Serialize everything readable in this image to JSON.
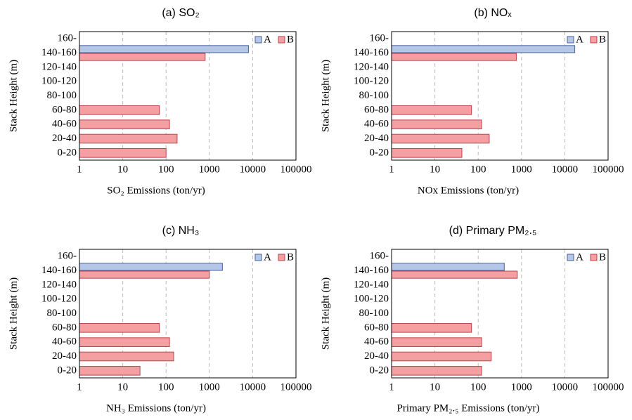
{
  "chart_data": [
    {
      "type": "bar",
      "orientation": "horizontal",
      "title": "(a) SO₂",
      "xlabel": "SO₂ Emissions (ton/yr)",
      "ylabel": "Stack Height (m)",
      "categories": [
        "0-20",
        "20-40",
        "40-60",
        "60-80",
        "80-100",
        "100-120",
        "120-140",
        "140-160",
        "160-"
      ],
      "series": [
        {
          "name": "A",
          "color": "#b4c7e7",
          "values": [
            null,
            null,
            null,
            null,
            null,
            null,
            null,
            8000,
            null
          ]
        },
        {
          "name": "B",
          "color": "#f4a0a3",
          "values": [
            100,
            180,
            120,
            70,
            null,
            null,
            null,
            800,
            null
          ]
        }
      ],
      "xscale": "log",
      "xlim": [
        1,
        100000
      ],
      "xticks": [
        1,
        10,
        100,
        1000,
        10000,
        100000
      ],
      "grid": true,
      "legend": "upper right"
    },
    {
      "type": "bar",
      "orientation": "horizontal",
      "title": "(b) NOₓ",
      "xlabel": "NOx Emissions (ton/yr)",
      "ylabel": "Stack Height (m)",
      "categories": [
        "0-20",
        "20-40",
        "40-60",
        "60-80",
        "80-100",
        "100-120",
        "120-140",
        "140-160",
        "160-"
      ],
      "series": [
        {
          "name": "A",
          "color": "#b4c7e7",
          "values": [
            null,
            null,
            null,
            null,
            null,
            null,
            null,
            17000,
            null
          ]
        },
        {
          "name": "B",
          "color": "#f4a0a3",
          "values": [
            42,
            180,
            120,
            70,
            null,
            null,
            null,
            760,
            null
          ]
        }
      ],
      "xscale": "log",
      "xlim": [
        1,
        100000
      ],
      "xticks": [
        1,
        10,
        100,
        1000,
        10000,
        100000
      ],
      "grid": true,
      "legend": "upper right"
    },
    {
      "type": "bar",
      "orientation": "horizontal",
      "title": "(c) NH₃",
      "xlabel": "NH₃ Emissions (ton/yr)",
      "ylabel": "Stack Height (m)",
      "categories": [
        "0-20",
        "20-40",
        "40-60",
        "60-80",
        "80-100",
        "100-120",
        "120-140",
        "140-160",
        "160-"
      ],
      "series": [
        {
          "name": "A",
          "color": "#b4c7e7",
          "values": [
            null,
            null,
            null,
            null,
            null,
            null,
            null,
            2000,
            null
          ]
        },
        {
          "name": "B",
          "color": "#f4a0a3",
          "values": [
            25,
            150,
            120,
            70,
            null,
            null,
            null,
            1000,
            null
          ]
        }
      ],
      "xscale": "log",
      "xlim": [
        1,
        100000
      ],
      "xticks": [
        1,
        10,
        100,
        1000,
        10000,
        100000
      ],
      "grid": true,
      "legend": "upper right"
    },
    {
      "type": "bar",
      "orientation": "horizontal",
      "title": "(d) Primary PM₂.₅",
      "xlabel": "Primary PM₂.₅ Emissions (ton/yr)",
      "ylabel": "Stack Height (m)",
      "categories": [
        "0-20",
        "20-40",
        "40-60",
        "60-80",
        "80-100",
        "100-120",
        "120-140",
        "140-160",
        "160-"
      ],
      "series": [
        {
          "name": "A",
          "color": "#b4c7e7",
          "values": [
            null,
            null,
            null,
            null,
            null,
            null,
            null,
            400,
            null
          ]
        },
        {
          "name": "B",
          "color": "#f4a0a3",
          "values": [
            120,
            200,
            120,
            70,
            null,
            null,
            null,
            800,
            null
          ]
        }
      ],
      "xscale": "log",
      "xlim": [
        1,
        100000
      ],
      "xticks": [
        1,
        10,
        100,
        1000,
        10000,
        100000
      ],
      "grid": true,
      "legend": "upper right"
    }
  ]
}
